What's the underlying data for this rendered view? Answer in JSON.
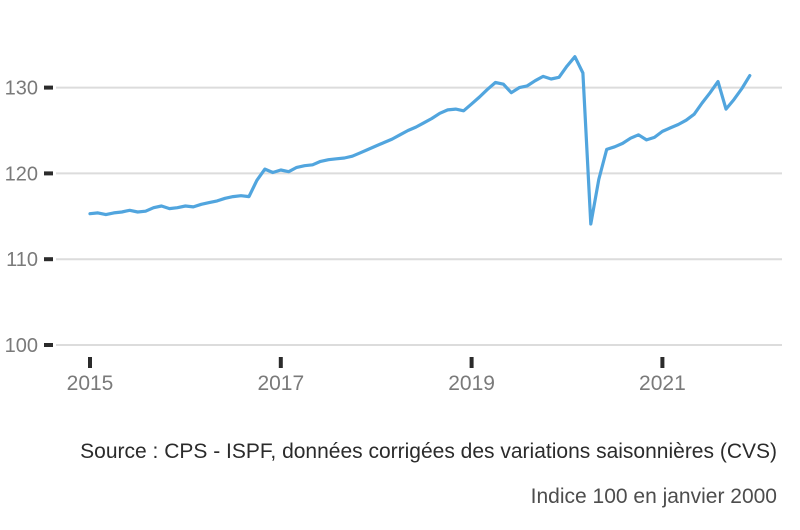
{
  "chart_data": {
    "type": "line",
    "title": "",
    "xlabel": "",
    "ylabel": "",
    "grid": "horizontal",
    "legend": "none",
    "line_color": "#51a5de",
    "grid_color": "#dcdcdc",
    "tick_mark_color": "#2b2b2b",
    "tick_label_color": "#7a7a7a",
    "ylim": [
      97,
      135.5
    ],
    "xlim": [
      2014.65,
      2022.3
    ],
    "yticks": [
      100,
      110,
      120,
      130
    ],
    "ytick_labels": [
      "100",
      "110",
      "120",
      "130"
    ],
    "xticks": [
      2015,
      2017,
      2019,
      2021
    ],
    "xtick_labels": [
      "2015",
      "2017",
      "2019",
      "2021"
    ],
    "x_start_year": 2015,
    "x_step_years": 0.0833333,
    "x_frequency": "monthly",
    "values": [
      115.3,
      115.4,
      115.2,
      115.4,
      115.5,
      115.7,
      115.5,
      115.6,
      116.0,
      116.2,
      115.9,
      116.0,
      116.2,
      116.1,
      116.4,
      116.6,
      116.8,
      117.1,
      117.3,
      117.4,
      117.3,
      119.2,
      120.5,
      120.1,
      120.4,
      120.2,
      120.7,
      120.9,
      121.0,
      121.4,
      121.6,
      121.7,
      121.8,
      122.0,
      122.4,
      122.8,
      123.2,
      123.6,
      124.0,
      124.5,
      125.0,
      125.4,
      125.9,
      126.4,
      127.0,
      127.4,
      127.5,
      127.3,
      128.1,
      128.9,
      129.8,
      130.6,
      130.4,
      129.4,
      130.0,
      130.2,
      130.8,
      131.3,
      131.0,
      131.2,
      132.5,
      133.6,
      131.7,
      114.1,
      119.3,
      122.8,
      123.1,
      123.5,
      124.1,
      124.5,
      123.9,
      124.2,
      124.9,
      125.3,
      125.7,
      126.2,
      126.9,
      128.2,
      129.4,
      130.7,
      127.5,
      128.6,
      129.9,
      131.4
    ]
  },
  "footer": {
    "source": "Source : CPS - ISPF, données corrigées des variations saisonnières (CVS)",
    "note": "Indice 100 en janvier 2000"
  }
}
